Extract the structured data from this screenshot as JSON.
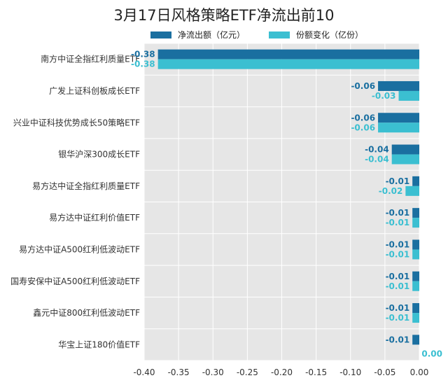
{
  "chart_data": {
    "type": "bar",
    "orientation": "horizontal",
    "title": "3月17日风格策略ETF净流出前10",
    "categories": [
      "南方中证全指红利质量ETF",
      "广发上证科创板成长ETF",
      "兴业中证科技优势成长50策略ETF",
      "银华沪深300成长ETF",
      "易方达中证全指红利质量ETF",
      "易方达中证红利价值ETF",
      "易方达中证A500红利低波动ETF",
      "国寿安保中证A500红利低波动ETF",
      "鑫元中证800红利低波动ETF",
      "华宝上证180价值ETF"
    ],
    "series": [
      {
        "name": "净流出额（亿元）",
        "color": "#1a6fa0",
        "values": [
          -0.38,
          -0.06,
          -0.06,
          -0.04,
          -0.01,
          -0.01,
          -0.01,
          -0.01,
          -0.01,
          -0.01
        ]
      },
      {
        "name": "份额变化（亿份）",
        "color": "#3bbfd1",
        "values": [
          -0.38,
          -0.03,
          -0.06,
          -0.04,
          -0.02,
          -0.01,
          -0.01,
          -0.01,
          -0.01,
          0.0
        ]
      }
    ],
    "xlim": [
      -0.4,
      0.0
    ],
    "xticks": [
      "-0.40",
      "-0.35",
      "-0.30",
      "-0.25",
      "-0.20",
      "-0.15",
      "-0.10",
      "-0.05",
      "0.00"
    ],
    "grid": true,
    "legend_position": "top"
  }
}
